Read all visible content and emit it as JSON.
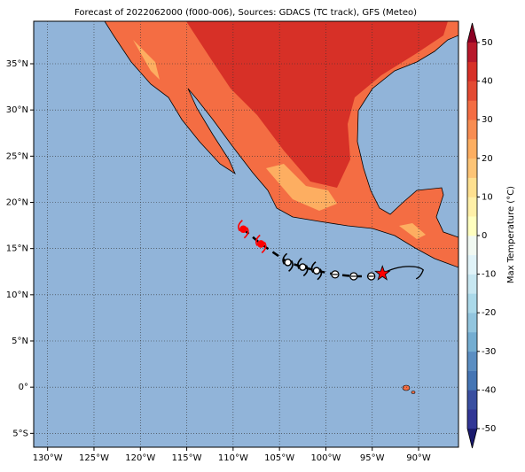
{
  "chart_data": {
    "type": "map",
    "title": "Forecast of 2022062000 (f000-006), Sources: GDACS (TC track), GFS (Meteo)",
    "xlim": [
      -131.5,
      -85.7
    ],
    "ylim": [
      -6.5,
      39.6
    ],
    "xticks": [
      {
        "value": -130,
        "label": "130°W"
      },
      {
        "value": -125,
        "label": "125°W"
      },
      {
        "value": -120,
        "label": "120°W"
      },
      {
        "value": -115,
        "label": "115°W"
      },
      {
        "value": -110,
        "label": "110°W"
      },
      {
        "value": -105,
        "label": "105°W"
      },
      {
        "value": -100,
        "label": "100°W"
      },
      {
        "value": -95,
        "label": "95°W"
      },
      {
        "value": -90,
        "label": "90°W"
      }
    ],
    "yticks": [
      {
        "value": -5,
        "label": "5°S"
      },
      {
        "value": 0,
        "label": "0°"
      },
      {
        "value": 5,
        "label": "5°N"
      },
      {
        "value": 10,
        "label": "10°N"
      },
      {
        "value": 15,
        "label": "15°N"
      },
      {
        "value": 20,
        "label": "20°N"
      },
      {
        "value": 25,
        "label": "25°N"
      },
      {
        "value": 30,
        "label": "30°N"
      },
      {
        "value": 35,
        "label": "35°N"
      }
    ],
    "grid": true,
    "colorbar": {
      "label": "Max Temperature (°C)",
      "lim": [
        -50,
        50
      ],
      "ticks": [
        -50,
        -40,
        -30,
        -20,
        -10,
        0,
        10,
        20,
        30,
        40,
        50
      ],
      "colors": [
        "#313695",
        "#3a4fa0",
        "#4575b4",
        "#5b8ec2",
        "#74add1",
        "#92c5de",
        "#abd9e9",
        "#c7e7f1",
        "#e0f3f8",
        "#f1f9f2",
        "#ffffbf",
        "#fff0a8",
        "#fee090",
        "#fdc476",
        "#fdae61",
        "#f88d52",
        "#f46d43",
        "#e34a33",
        "#d73027",
        "#b8182b"
      ],
      "under": "#1a1a6e",
      "over": "#8b0023"
    },
    "track": {
      "lon": [
        -108.9,
        -107.0,
        -104.1,
        -102.5,
        -101.0,
        -99.0,
        -97.0,
        -95.1,
        -93.9
      ],
      "lat": [
        17.1,
        15.5,
        13.5,
        13.0,
        12.6,
        12.2,
        12.0,
        12.0,
        12.3
      ],
      "marker": [
        "storm",
        "storm",
        "storm",
        "storm",
        "storm",
        "circle",
        "circle",
        "circle",
        "star"
      ],
      "color": [
        "#ff0000",
        "#ff0000",
        "#000000",
        "#000000",
        "#000000",
        "#000000",
        "#000000",
        "#000000",
        "#ff0000"
      ]
    }
  }
}
